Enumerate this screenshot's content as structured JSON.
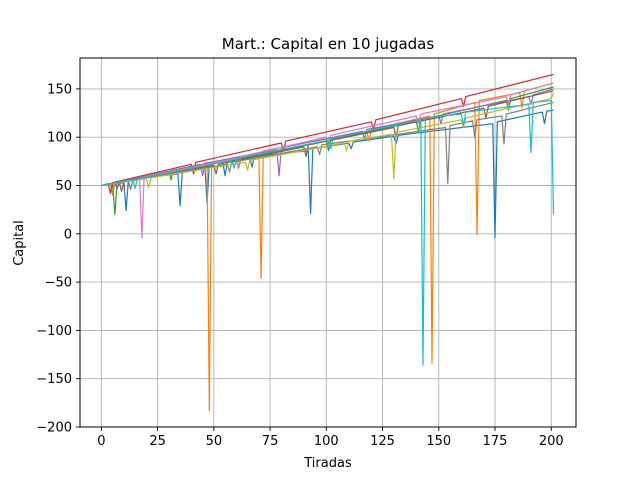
{
  "chart_data": {
    "type": "line",
    "title": "Mart.: Capital en 10 jugadas",
    "xlabel": "Tiradas",
    "ylabel": "Capital",
    "xlim": [
      -9.5,
      211
    ],
    "ylim": [
      -200,
      182
    ],
    "xticks": [
      0,
      25,
      50,
      75,
      100,
      125,
      150,
      175,
      200
    ],
    "yticks": [
      -200,
      -150,
      -100,
      -50,
      0,
      50,
      100,
      150
    ],
    "grid": true,
    "series": [
      {
        "color": "#1f77b4",
        "points": [
          [
            0,
            50
          ],
          [
            10,
            53
          ],
          [
            11,
            24
          ],
          [
            12,
            56
          ],
          [
            34,
            62
          ],
          [
            35,
            29
          ],
          [
            36,
            64
          ],
          [
            46,
            70
          ],
          [
            47,
            32
          ],
          [
            48,
            73
          ],
          [
            54,
            74
          ],
          [
            55,
            60
          ],
          [
            56,
            75
          ],
          [
            66,
            79
          ],
          [
            67,
            69
          ],
          [
            68,
            80
          ],
          [
            92,
            86
          ],
          [
            93,
            21
          ],
          [
            94,
            88
          ],
          [
            110,
            94
          ],
          [
            111,
            88
          ],
          [
            112,
            95
          ],
          [
            130,
            101
          ],
          [
            131,
            93
          ],
          [
            132,
            102
          ],
          [
            174,
            114
          ],
          [
            175,
            -4
          ],
          [
            176,
            116
          ],
          [
            196,
            126
          ],
          [
            197,
            114
          ],
          [
            198,
            127
          ],
          [
            201,
            128
          ]
        ]
      },
      {
        "color": "#ff7f0e",
        "points": [
          [
            0,
            50
          ],
          [
            4,
            52
          ],
          [
            5,
            40
          ],
          [
            6,
            53
          ],
          [
            47,
            73
          ],
          [
            48,
            -183
          ],
          [
            49,
            74
          ],
          [
            70,
            84
          ],
          [
            71,
            -46
          ],
          [
            72,
            86
          ],
          [
            118,
            106
          ],
          [
            119,
            96
          ],
          [
            120,
            108
          ],
          [
            146,
            122
          ],
          [
            147,
            -134
          ],
          [
            148,
            124
          ],
          [
            166,
            136
          ],
          [
            167,
            -1
          ],
          [
            168,
            138
          ],
          [
            186,
            146
          ],
          [
            187,
            130
          ],
          [
            188,
            148
          ],
          [
            201,
            156
          ]
        ]
      },
      {
        "color": "#2ca02c",
        "points": [
          [
            0,
            50
          ],
          [
            5,
            52
          ],
          [
            6,
            20
          ],
          [
            7,
            54
          ],
          [
            30,
            64
          ],
          [
            31,
            56
          ],
          [
            32,
            66
          ],
          [
            60,
            77
          ],
          [
            61,
            68
          ],
          [
            62,
            78
          ],
          [
            100,
            96
          ],
          [
            101,
            86
          ],
          [
            102,
            98
          ],
          [
            140,
            116
          ],
          [
            141,
            106
          ],
          [
            142,
            118
          ],
          [
            180,
            138
          ],
          [
            181,
            128
          ],
          [
            182,
            140
          ],
          [
            201,
            152
          ]
        ]
      },
      {
        "color": "#d62728",
        "points": [
          [
            0,
            50
          ],
          [
            3,
            52
          ],
          [
            4,
            42
          ],
          [
            5,
            53
          ],
          [
            40,
            72
          ],
          [
            41,
            62
          ],
          [
            42,
            74
          ],
          [
            80,
            94
          ],
          [
            81,
            86
          ],
          [
            82,
            96
          ],
          [
            120,
            116
          ],
          [
            121,
            108
          ],
          [
            122,
            118
          ],
          [
            160,
            140
          ],
          [
            161,
            132
          ],
          [
            162,
            142
          ],
          [
            201,
            165
          ]
        ]
      },
      {
        "color": "#9467bd",
        "points": [
          [
            0,
            50
          ],
          [
            6,
            53
          ],
          [
            7,
            46
          ],
          [
            8,
            54
          ],
          [
            44,
            72
          ],
          [
            45,
            60
          ],
          [
            46,
            73
          ],
          [
            78,
            87
          ],
          [
            79,
            60
          ],
          [
            80,
            89
          ],
          [
            116,
            106
          ],
          [
            117,
            98
          ],
          [
            118,
            108
          ],
          [
            150,
            122
          ],
          [
            151,
            114
          ],
          [
            152,
            124
          ],
          [
            190,
            142
          ],
          [
            191,
            134
          ],
          [
            192,
            144
          ],
          [
            201,
            150
          ]
        ]
      },
      {
        "color": "#8c564b",
        "points": [
          [
            0,
            50
          ],
          [
            8,
            53
          ],
          [
            9,
            44
          ],
          [
            10,
            54
          ],
          [
            50,
            71
          ],
          [
            51,
            62
          ],
          [
            52,
            72
          ],
          [
            90,
            90
          ],
          [
            91,
            80
          ],
          [
            92,
            92
          ],
          [
            130,
            110
          ],
          [
            131,
            100
          ],
          [
            132,
            112
          ],
          [
            170,
            130
          ],
          [
            171,
            120
          ],
          [
            172,
            132
          ],
          [
            201,
            148
          ]
        ]
      },
      {
        "color": "#e377c2",
        "points": [
          [
            0,
            50
          ],
          [
            17,
            57
          ],
          [
            18,
            -4
          ],
          [
            19,
            59
          ],
          [
            60,
            78
          ],
          [
            61,
            70
          ],
          [
            62,
            80
          ],
          [
            100,
            100
          ],
          [
            101,
            92
          ],
          [
            102,
            102
          ],
          [
            140,
            122
          ],
          [
            141,
            114
          ],
          [
            142,
            124
          ],
          [
            180,
            142
          ],
          [
            181,
            134
          ],
          [
            182,
            144
          ],
          [
            201,
            156
          ]
        ]
      },
      {
        "color": "#7f7f7f",
        "points": [
          [
            0,
            50
          ],
          [
            12,
            55
          ],
          [
            13,
            46
          ],
          [
            14,
            56
          ],
          [
            56,
            72
          ],
          [
            57,
            64
          ],
          [
            58,
            74
          ],
          [
            96,
            90
          ],
          [
            97,
            82
          ],
          [
            98,
            92
          ],
          [
            153,
            110
          ],
          [
            154,
            52
          ],
          [
            155,
            112
          ],
          [
            165,
            117
          ],
          [
            166,
            100
          ],
          [
            167,
            118
          ],
          [
            178,
            122
          ],
          [
            179,
            93
          ],
          [
            180,
            124
          ],
          [
            201,
            136
          ]
        ]
      },
      {
        "color": "#bcbd22",
        "points": [
          [
            0,
            50
          ],
          [
            20,
            57
          ],
          [
            21,
            48
          ],
          [
            22,
            58
          ],
          [
            64,
            74
          ],
          [
            65,
            66
          ],
          [
            66,
            76
          ],
          [
            108,
            94
          ],
          [
            109,
            86
          ],
          [
            110,
            96
          ],
          [
            129,
            103
          ],
          [
            130,
            57
          ],
          [
            131,
            105
          ],
          [
            160,
            118
          ],
          [
            161,
            110
          ],
          [
            162,
            120
          ],
          [
            200,
            140
          ],
          [
            201,
            146
          ]
        ]
      },
      {
        "color": "#17becf",
        "points": [
          [
            0,
            50
          ],
          [
            14,
            56
          ],
          [
            15,
            47
          ],
          [
            16,
            57
          ],
          [
            58,
            76
          ],
          [
            59,
            68
          ],
          [
            60,
            78
          ],
          [
            101,
            97
          ],
          [
            102,
            88
          ],
          [
            103,
            99
          ],
          [
            142,
            118
          ],
          [
            143,
            -136
          ],
          [
            144,
            120
          ],
          [
            160,
            124
          ],
          [
            161,
            112
          ],
          [
            162,
            126
          ],
          [
            190,
            134
          ],
          [
            191,
            84
          ],
          [
            192,
            136
          ],
          [
            200,
            138
          ],
          [
            201,
            20
          ]
        ]
      }
    ]
  }
}
